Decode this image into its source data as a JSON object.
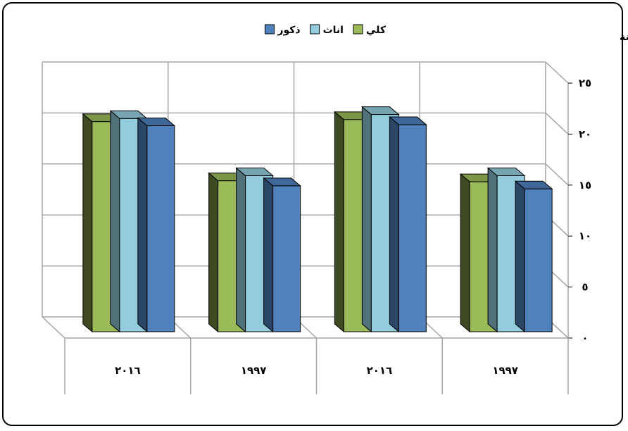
{
  "chart_data": {
    "type": "bar",
    "title": "",
    "ylabel": "العمر الوسيط/ سنة",
    "ylim": [
      0,
      25
    ],
    "yticks": [
      {
        "value": 0,
        "label": "٠"
      },
      {
        "value": 5,
        "label": "٥"
      },
      {
        "value": 10,
        "label": "١٠"
      },
      {
        "value": 15,
        "label": "١٥"
      },
      {
        "value": 20,
        "label": "٢٠"
      },
      {
        "value": 25,
        "label": "٢٥"
      }
    ],
    "categories": [
      "٢٠١٦",
      "١٩٩٧",
      "٢٠١٦",
      "١٩٩٧"
    ],
    "series": [
      {
        "name": "كلي",
        "color": "#9BBB59",
        "values": [
          20.6,
          14.8,
          20.8,
          14.7
        ]
      },
      {
        "name": "اناث",
        "color": "#93CDDD",
        "values": [
          20.9,
          15.3,
          21.3,
          15.3
        ]
      },
      {
        "name": "ذكور",
        "color": "#4F81BD",
        "values": [
          20.2,
          14.3,
          20.3,
          14.0
        ]
      }
    ],
    "grid": true,
    "legend_position": "top"
  }
}
